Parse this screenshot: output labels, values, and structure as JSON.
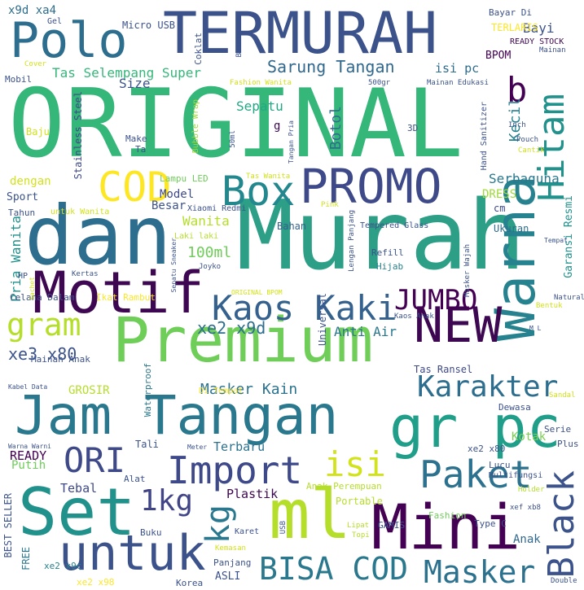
{
  "words": [
    "ORIGINAL",
    "Murah",
    "dan",
    "TERMURAH",
    "Jam Tangan",
    "Premium",
    "Set",
    "Mini",
    "ml",
    "Motif",
    "Warna",
    "gr pc",
    "untuk",
    "Polo",
    "PROMO",
    "Import",
    "Kaos Kaki",
    "NEW",
    "Hitam",
    "COD",
    "Paket",
    "Black",
    "BISA COD",
    "Masker",
    "Box",
    "Karakter",
    "ORI",
    "isi",
    "JUMBO",
    "kg",
    "1kg",
    "gram",
    "b",
    "Sarung Tangan",
    "xe2 x9d",
    "Tas Selempang Super",
    "xe3 x80",
    "Masker Kain",
    "Anti Air",
    "Sepatu",
    "Botol",
    "Kecil",
    "Wanita",
    "100ml",
    "Serbaguna",
    "Size",
    "Bayi",
    "Pria Wanita",
    "Model",
    "Besar",
    "Plastik",
    "Terbaru",
    "Tebal",
    "Kotak",
    "Anak",
    "Putih",
    "READY",
    "GROSIR",
    "Tas Ransel",
    "x9d xa4",
    "Micro USB",
    "TERLARIS",
    "BPOM",
    "isi pc",
    "Gel",
    "Coklat",
    "Mobil",
    "Baju",
    "Make",
    "Ta",
    "Stainless Steel",
    "dengan",
    "Sport",
    "Tahun",
    "untuk Wanita",
    "Lampu LED",
    "Bubble Wrap",
    "Xiaomi Redmi",
    "DRESS",
    "cm",
    "Garansi Resmi",
    "Ukuran",
    "Refill",
    "Hijab",
    "Tempered Glass",
    "Laki laki",
    "Bahan",
    "Hand Sanitizer",
    "HP",
    "Celana Dalam",
    "Ikat Rambut",
    "Mainan Anak",
    "Universal",
    "Waterproof",
    "Di Tempat",
    "Tali",
    "Alat",
    "Buku",
    "Karet",
    "Kemasan",
    "Korea",
    "ASLI",
    "Panjang",
    "BEST SELLER",
    "FREE",
    "xe2 x9c",
    "xe2 x98",
    "Fashion",
    "Type C",
    "GAMIS",
    "Lipat",
    "Topi",
    "Portable",
    "Anak Perempuan",
    "xe2 x80",
    "Lucu",
    "Multifungsi",
    "Holder",
    "xef xb8",
    "Double",
    "Serie",
    "Plus",
    "Dewasa",
    "Sandal",
    "Kaos Anak",
    "M L",
    "Natural",
    "Bentuk",
    "Masker Wajah",
    "Tempat",
    "Pouch",
    "Cantik",
    "Inch",
    "3D",
    "Tangan Pria",
    "500gr",
    "Mainan Edukasi",
    "Mainan",
    "READY STOCK",
    "BORDIR",
    "Bayar Di",
    "Fashion Wanita",
    "Cover",
    "50ml",
    "Tas Wanita",
    "Pink",
    "Lengan Panjang",
    "Joyko",
    "Sepatu Sneaker",
    "Kertas",
    "Sachet",
    "ORIGINAL BPOM",
    "Kabel Data",
    "Warna Warni",
    "Meter",
    "USB",
    "g"
  ]
}
